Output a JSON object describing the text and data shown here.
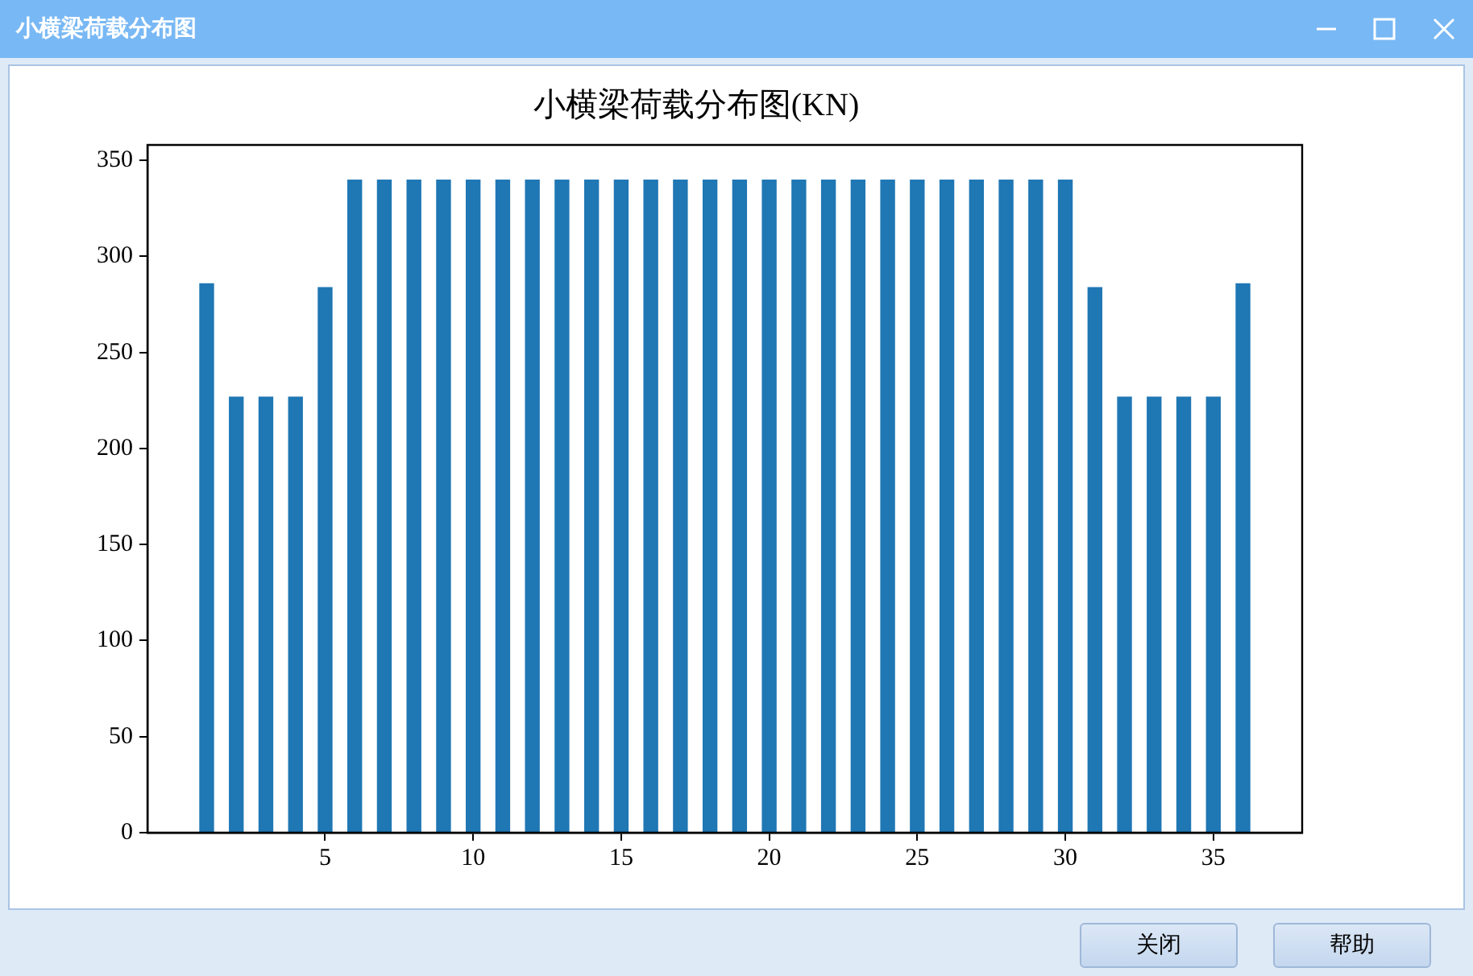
{
  "chart_data": {
    "type": "bar",
    "title": "小横梁荷载分布图(KN)",
    "x": [
      1,
      2,
      3,
      4,
      5,
      6,
      7,
      8,
      9,
      10,
      11,
      12,
      13,
      14,
      15,
      16,
      17,
      18,
      19,
      20,
      21,
      22,
      23,
      24,
      25,
      26,
      27,
      28,
      29,
      30,
      31,
      32,
      33,
      34,
      35,
      36
    ],
    "values": [
      286,
      227,
      227,
      227,
      284,
      340,
      340,
      340,
      340,
      340,
      340,
      340,
      340,
      340,
      340,
      340,
      340,
      340,
      340,
      340,
      340,
      340,
      340,
      340,
      340,
      340,
      340,
      340,
      340,
      340,
      284,
      227,
      227,
      227,
      227,
      286
    ],
    "color": "#1f77b4",
    "xlim": [
      -1,
      38
    ],
    "xticks": [
      5,
      10,
      15,
      20,
      25,
      30,
      35
    ],
    "ylim": [
      0,
      358
    ],
    "yticks": [
      0,
      50,
      100,
      150,
      200,
      250,
      300,
      350
    ],
    "annotations": [
      "小横梁荷载分布图",
      "关闭",
      "帮助"
    ]
  }
}
